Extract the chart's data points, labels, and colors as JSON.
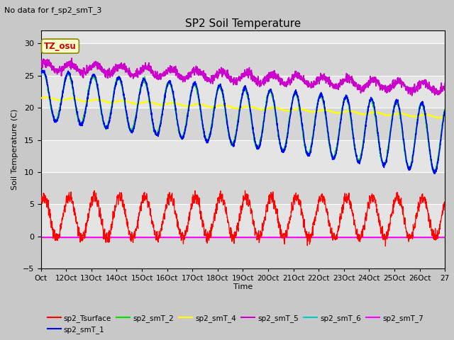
{
  "title": "SP2 Soil Temperature",
  "subtitle": "No data for f_sp2_smT_3",
  "xlabel": "Time",
  "ylabel": "Soil Temperature (C)",
  "ylim": [
    -5,
    32
  ],
  "yticks": [
    -5,
    0,
    5,
    10,
    15,
    20,
    25,
    30
  ],
  "xlim": [
    0,
    384
  ],
  "xtick_labels": [
    "Oct",
    "12Oct",
    "13Oct",
    "14Oct",
    "15Oct",
    "16Oct",
    "17Oct",
    "18Oct",
    "19Oct",
    "20Oct",
    "21Oct",
    "22Oct",
    "23Oct",
    "24Oct",
    "25Oct",
    "26Oct",
    "27"
  ],
  "xtick_positions": [
    0,
    24,
    48,
    72,
    96,
    120,
    144,
    168,
    192,
    216,
    240,
    264,
    288,
    312,
    336,
    360,
    384
  ],
  "series_colors": {
    "sp2_Tsurface": "#ff0000",
    "sp2_smT_1": "#0000ff",
    "sp2_smT_2": "#00dd00",
    "sp2_smT_4": "#ffff00",
    "sp2_smT_5": "#cc00cc",
    "sp2_smT_6": "#00cccc",
    "sp2_smT_7": "#ff00ff"
  },
  "annotation_text": "TZ_osu",
  "annotation_color": "#cc0000",
  "annotation_bgcolor": "#ffffcc",
  "annotation_edgecolor": "#888800"
}
